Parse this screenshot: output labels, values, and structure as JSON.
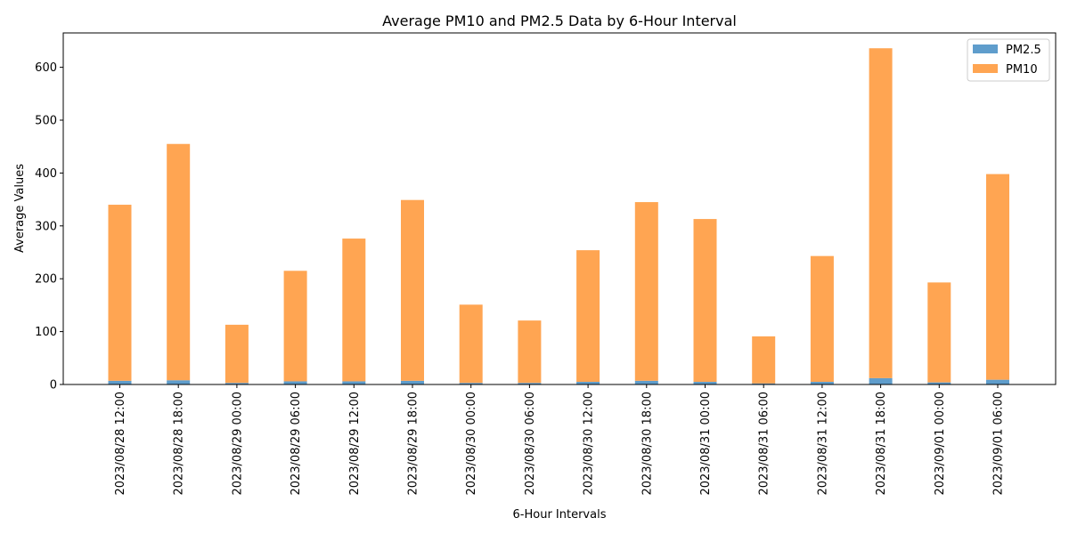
{
  "chart_data": {
    "type": "bar",
    "stacked": true,
    "title": "Average PM10 and PM2.5 Data by 6-Hour Interval",
    "xlabel": "6-Hour Intervals",
    "ylabel": "Average Values",
    "ylim": [
      0,
      665
    ],
    "yticks": [
      0,
      100,
      200,
      300,
      400,
      500,
      600
    ],
    "legend_position": "top-right",
    "categories": [
      "2023/08/28 12:00",
      "2023/08/28 18:00",
      "2023/08/29 00:00",
      "2023/08/29 06:00",
      "2023/08/29 12:00",
      "2023/08/29 18:00",
      "2023/08/30 00:00",
      "2023/08/30 06:00",
      "2023/08/30 12:00",
      "2023/08/30 18:00",
      "2023/08/31 00:00",
      "2023/08/31 06:00",
      "2023/08/31 12:00",
      "2023/08/31 18:00",
      "2023/09/01 00:00",
      "2023/09/01 06:00"
    ],
    "series": [
      {
        "name": "PM2.5",
        "color": "#5f9dcc",
        "values": [
          7,
          8,
          3,
          6,
          6,
          7,
          3,
          3,
          5,
          7,
          5,
          2,
          5,
          12,
          4,
          9
        ]
      },
      {
        "name": "PM10",
        "color": "#ffa552",
        "values": [
          333,
          447,
          110,
          209,
          270,
          342,
          148,
          118,
          249,
          338,
          308,
          89,
          238,
          624,
          189,
          389
        ]
      }
    ]
  }
}
